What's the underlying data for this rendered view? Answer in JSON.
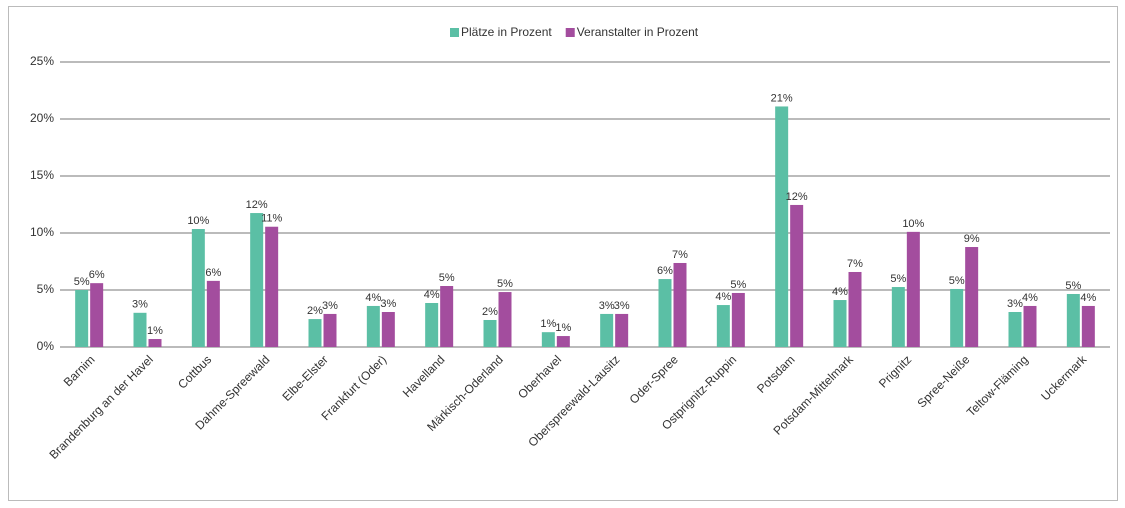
{
  "chart_data": {
    "type": "bar",
    "categories": [
      "Barnim",
      "Brandenburg an der Havel",
      "Cottbus",
      "Dahme-Spreewald",
      "Elbe-Elster",
      "Frankfurt (Oder)",
      "Havelland",
      "Märkisch-Oderland",
      "Oberhavel",
      "Oberspreewald-Lausitz",
      "Oder-Spree",
      "Ostprignitz-Ruppin",
      "Potsdam",
      "Potsdam-Mittelmark",
      "Prignitz",
      "Spree-Neiße",
      "Teltow-Fläming",
      "Uckermark"
    ],
    "series": [
      {
        "name": "Plätze in Prozent",
        "color": "#5bbfa5",
        "values": [
          5.0,
          3.0,
          10.35,
          11.75,
          2.45,
          3.6,
          3.86,
          2.37,
          1.3,
          2.9,
          5.96,
          3.68,
          21.1,
          4.12,
          5.26,
          5.09,
          3.07,
          4.65
        ],
        "value_labels": [
          "5%",
          "3%",
          "10%",
          "12%",
          "2%",
          "4%",
          "4%",
          "2%",
          "1%",
          "3%",
          "6%",
          "4%",
          "21%",
          "4%",
          "5%",
          "5%",
          "3%",
          "5%"
        ]
      },
      {
        "name": "Veranstalter in Prozent",
        "color": "#a34d9e",
        "values": [
          5.6,
          0.7,
          5.8,
          10.55,
          2.9,
          3.07,
          5.35,
          4.82,
          0.96,
          2.9,
          7.37,
          4.74,
          12.46,
          6.58,
          10.1,
          8.77,
          3.6,
          3.6
        ],
        "value_labels": [
          "6%",
          "1%",
          "6%",
          "11%",
          "3%",
          "3%",
          "5%",
          "5%",
          "1%",
          "3%",
          "7%",
          "5%",
          "12%",
          "7%",
          "10%",
          "9%",
          "4%",
          "4%"
        ]
      }
    ],
    "ylim": [
      0,
      25
    ],
    "yticks": [
      {
        "value": 0,
        "label": "0%"
      },
      {
        "value": 5,
        "label": "5%"
      },
      {
        "value": 10,
        "label": "10%"
      },
      {
        "value": 15,
        "label": "15%"
      },
      {
        "value": 20,
        "label": "20%"
      },
      {
        "value": 25,
        "label": "25%"
      }
    ],
    "grid": true,
    "legend": "top"
  }
}
